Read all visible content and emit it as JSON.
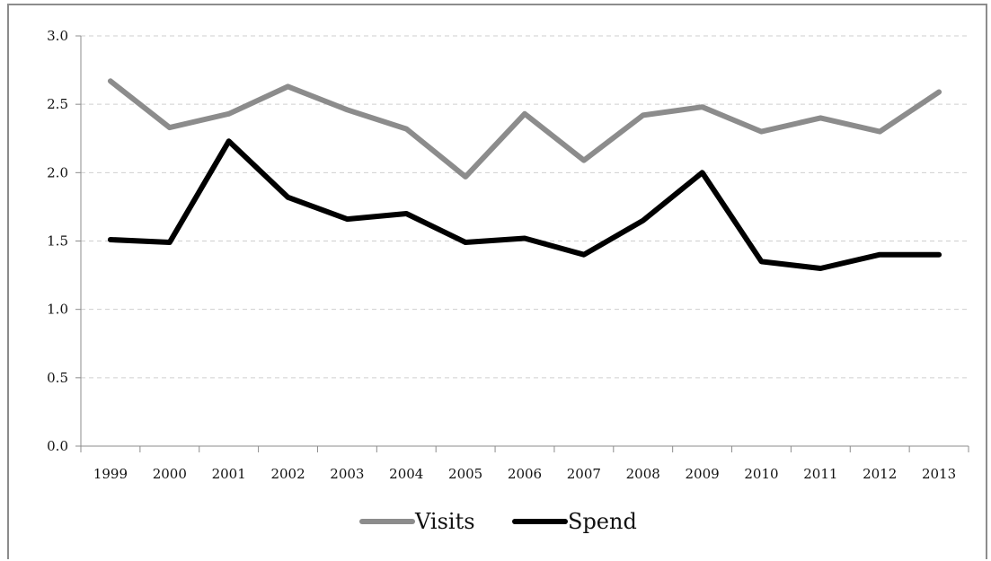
{
  "chart_data": {
    "type": "line",
    "x": [
      "1999",
      "2000",
      "2001",
      "2002",
      "2003",
      "2004",
      "2005",
      "2006",
      "2007",
      "2008",
      "2009",
      "2010",
      "2011",
      "2012",
      "2013"
    ],
    "series": [
      {
        "name": "Visits",
        "color": "#8c8c8c",
        "values": [
          2.67,
          2.33,
          2.43,
          2.63,
          2.46,
          2.32,
          1.97,
          2.43,
          2.09,
          2.42,
          2.48,
          2.3,
          2.4,
          2.3,
          2.59
        ]
      },
      {
        "name": "Spend",
        "color": "#000000",
        "values": [
          1.51,
          1.49,
          2.23,
          1.82,
          1.66,
          1.7,
          1.49,
          1.52,
          1.4,
          1.65,
          2.0,
          1.35,
          1.3,
          1.4,
          1.4
        ]
      }
    ],
    "y_ticks": [
      "0.0",
      "0.5",
      "1.0",
      "1.5",
      "2.0",
      "2.5",
      "3.0"
    ],
    "ylim": [
      0,
      3.0
    ],
    "grid": true,
    "legend_position": "bottom"
  }
}
